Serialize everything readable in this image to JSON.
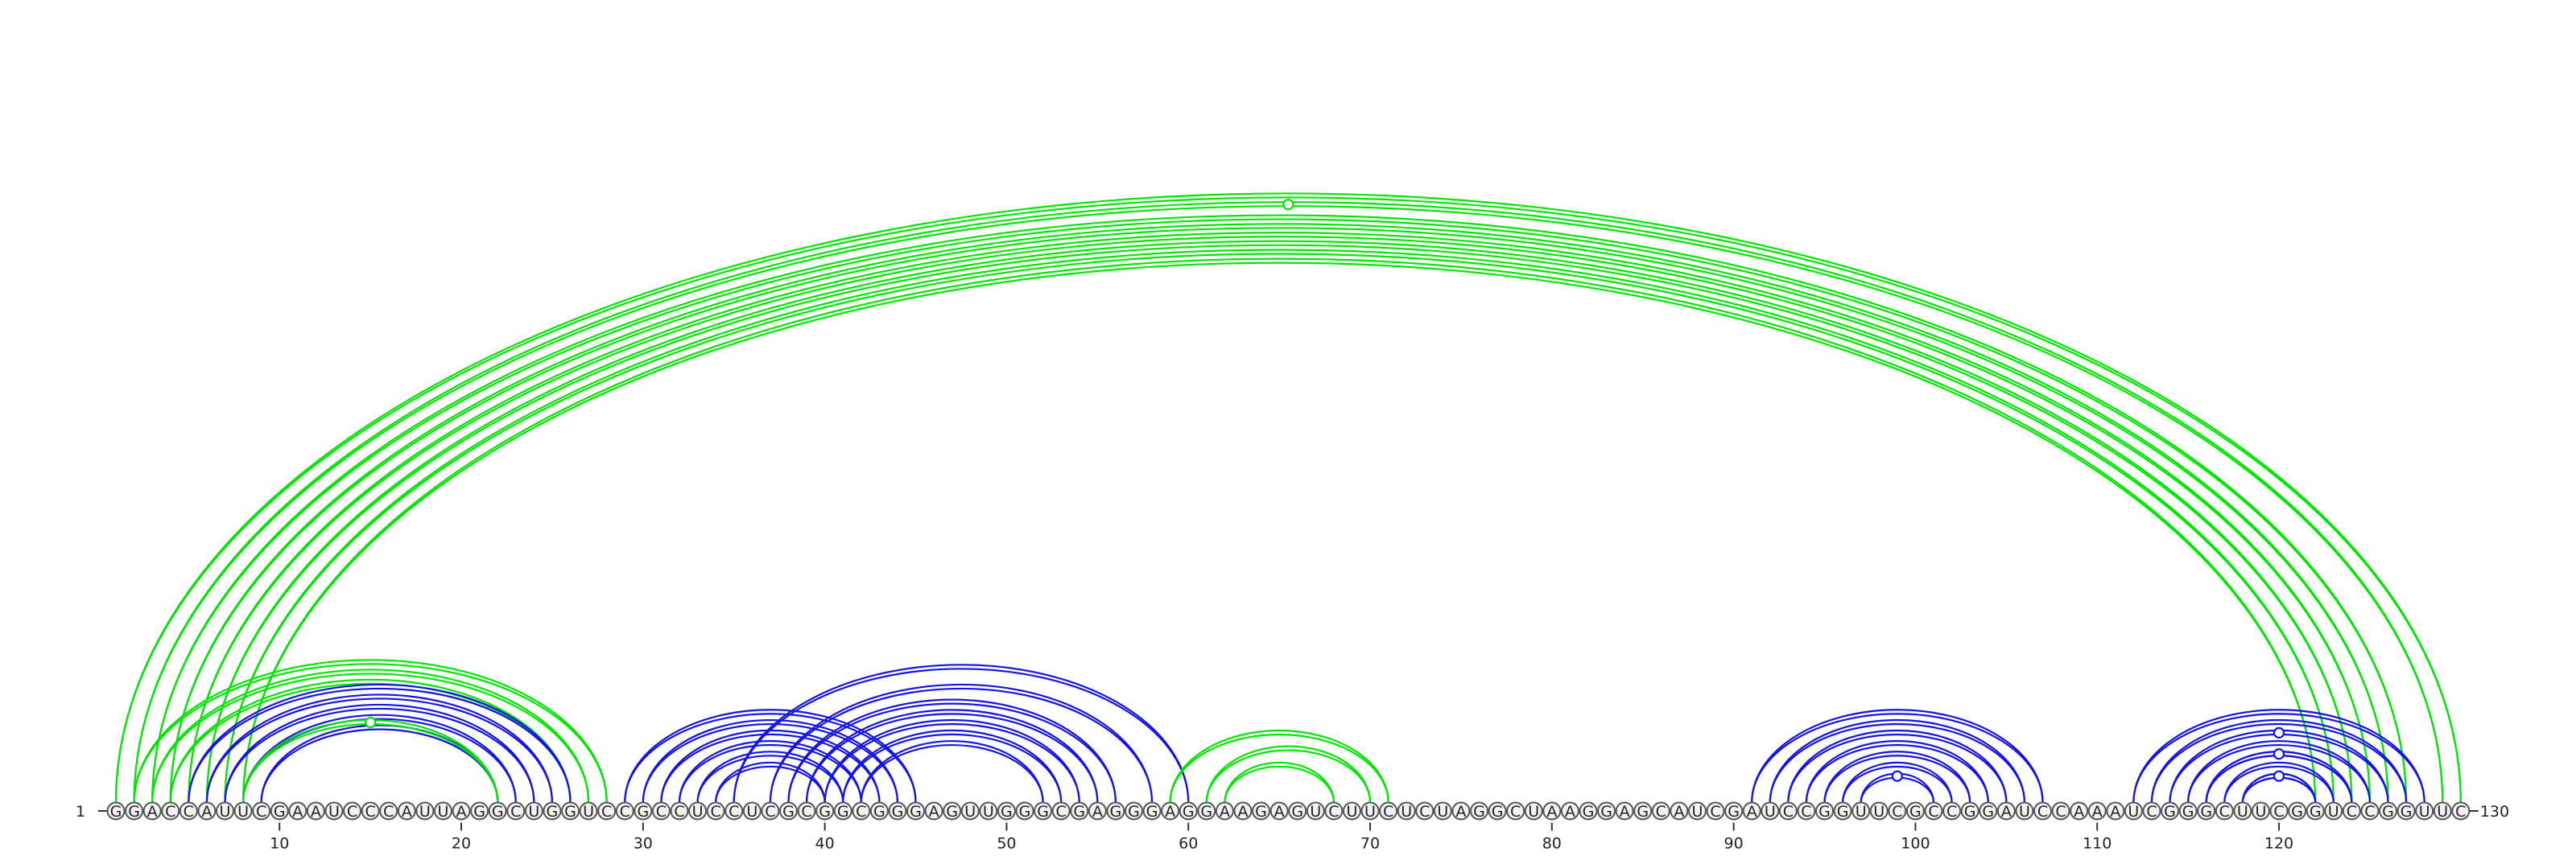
{
  "sequence": "GGACCAUUCGAAUCCCAUUAGGCUGGUCCGCCUCCUCGCGGCGGGAGUUGGGCGAGGGAGGAAGAGUCUUCUCUAGGCUAAGGAGCAUCGAUCCGGUUCGCCGGAUCCAAAUCGGGCUUCGGUCCGGUUC",
  "start_label": "1",
  "end_label": "130",
  "ticks": [
    10,
    20,
    30,
    40,
    50,
    60,
    70,
    80,
    90,
    100,
    110,
    120
  ],
  "colors": {
    "secondary_structure": "#1414e6",
    "tertiary_contact": "#00e600",
    "nucleotide_fill": "#f2f2f2",
    "nucleotide_stroke": "#555555"
  },
  "arc_groups": [
    {
      "kind": "tertiary",
      "color": "#00e600",
      "pairs": [
        [
          1,
          130
        ],
        [
          2,
          129
        ],
        [
          3,
          127
        ],
        [
          4,
          126
        ],
        [
          5,
          125
        ],
        [
          6,
          124
        ],
        [
          7,
          123
        ],
        [
          8,
          122
        ]
      ],
      "marker": {
        "pair": [
          2,
          129
        ]
      }
    },
    {
      "kind": "tertiary",
      "color": "#00e600",
      "pairs": [
        [
          2,
          28
        ],
        [
          3,
          27
        ],
        [
          4,
          26
        ]
      ]
    },
    {
      "kind": "secondary",
      "color": "#1414e6",
      "pairs": [
        [
          5,
          26
        ],
        [
          6,
          25
        ],
        [
          7,
          24
        ],
        [
          8,
          23
        ],
        [
          9,
          22
        ]
      ]
    },
    {
      "kind": "tertiary",
      "color": "#00e600",
      "pairs": [
        [
          8,
          22
        ]
      ],
      "marker": {
        "pair": [
          8,
          22
        ]
      }
    },
    {
      "kind": "secondary",
      "color": "#1414e6",
      "pairs": [
        [
          29,
          45
        ],
        [
          30,
          44
        ],
        [
          31,
          43
        ],
        [
          32,
          42
        ],
        [
          33,
          41
        ],
        [
          34,
          40
        ]
      ]
    },
    {
      "kind": "secondary",
      "color": "#1414e6",
      "pairs": [
        [
          35,
          60
        ],
        [
          37,
          58
        ],
        [
          38,
          56
        ],
        [
          39,
          55
        ],
        [
          40,
          54
        ],
        [
          41,
          53
        ],
        [
          42,
          52
        ]
      ]
    },
    {
      "kind": "tertiary",
      "color": "#00e600",
      "pairs": [
        [
          59,
          71
        ],
        [
          61,
          70
        ],
        [
          62,
          68
        ]
      ]
    },
    {
      "kind": "secondary",
      "color": "#1414e6",
      "pairs": [
        [
          91,
          107
        ],
        [
          92,
          106
        ],
        [
          93,
          105
        ],
        [
          94,
          104
        ],
        [
          95,
          103
        ],
        [
          96,
          102
        ],
        [
          97,
          101
        ]
      ],
      "marker": {
        "pair": [
          97,
          101
        ]
      }
    },
    {
      "kind": "secondary",
      "color": "#1414e6",
      "pairs": [
        [
          112,
          128
        ],
        [
          113,
          127
        ],
        [
          114,
          126
        ],
        [
          115,
          125
        ],
        [
          116,
          124
        ],
        [
          117,
          123
        ],
        [
          118,
          122
        ]
      ],
      "marker": {
        "pair": [
          114,
          126
        ]
      }
    },
    {
      "kind": "secondary",
      "color": "#1414e6",
      "pairs": [
        [
          116,
          124
        ]
      ],
      "marker": {
        "pair": [
          116,
          124
        ]
      }
    },
    {
      "kind": "secondary",
      "color": "#1414e6",
      "pairs": [
        [
          118,
          122
        ]
      ],
      "marker": {
        "pair": [
          118,
          122
        ]
      }
    }
  ]
}
